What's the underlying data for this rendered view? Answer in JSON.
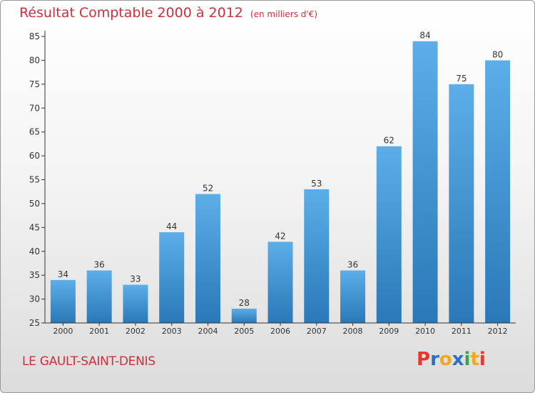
{
  "header": {
    "title": "Résultat Comptable 2000 à 2012",
    "subtitle": "(en milliers d'€)"
  },
  "footer": {
    "commune": "LE GAULT-SAINT-DENIS",
    "logo_text": "Proxiti",
    "logo_colors": [
      "#e8362c",
      "#2f6fc0",
      "#f0a81e",
      "#2f6fc0",
      "#3aa544",
      "#f0a81e",
      "#e8362c"
    ]
  },
  "colors": {
    "accent": "#c8323c",
    "bar_top": "#5caee8",
    "bar_bottom": "#2a78b8",
    "axis": "#333333"
  },
  "chart_data": {
    "type": "bar",
    "categories": [
      "2000",
      "2001",
      "2002",
      "2003",
      "2004",
      "2005",
      "2006",
      "2007",
      "2008",
      "2009",
      "2010",
      "2011",
      "2012"
    ],
    "values": [
      34,
      36,
      33,
      44,
      52,
      28,
      42,
      53,
      36,
      62,
      84,
      75,
      80
    ],
    "title": "Résultat Comptable 2000 à 2012",
    "subtitle": "(en milliers d'€)",
    "ylim": [
      25,
      85
    ],
    "yticks": [
      25,
      30,
      35,
      40,
      45,
      50,
      55,
      60,
      65,
      70,
      75,
      80,
      85
    ],
    "grid": false,
    "data_labels": true
  }
}
